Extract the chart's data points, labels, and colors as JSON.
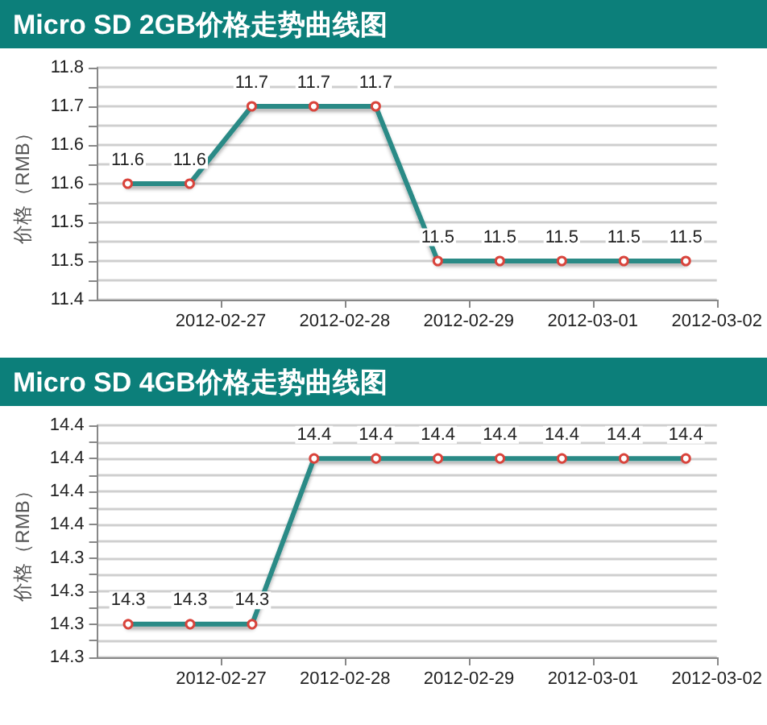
{
  "chart_data": [
    {
      "type": "line",
      "title": "Micro SD 2GB价格走势曲线图",
      "ylabel": "价格（RMB）",
      "x": [
        "2012-02-26T06:00",
        "2012-02-26T18:00",
        "2012-02-27T06:00",
        "2012-02-27T18:00",
        "2012-02-28T06:00",
        "2012-02-28T18:00",
        "2012-02-29T06:00",
        "2012-02-29T18:00",
        "2012-03-01T06:00",
        "2012-03-01T18:00"
      ],
      "series": [
        {
          "color": "#2a8a86",
          "values": [
            11.58,
            11.58,
            11.7,
            11.7,
            11.7,
            11.46,
            11.46,
            11.46,
            11.46,
            11.46
          ],
          "value_labels": [
            "11.6",
            "11.6",
            "11.7",
            "11.7",
            "11.7",
            "11.5",
            "11.5",
            "11.5",
            "11.5",
            "11.5"
          ]
        }
      ],
      "xlim": [
        "2012-02-26",
        "2012-03-02"
      ],
      "xticks": [
        "2012-02-27",
        "2012-02-28",
        "2012-02-29",
        "2012-03-01",
        "2012-03-02"
      ],
      "ylim": [
        11.4,
        11.76
      ],
      "yticks": [
        {
          "value": 11.4,
          "label": "11.4"
        },
        {
          "value": 11.43,
          "label": null
        },
        {
          "value": 11.46,
          "label": "11.5"
        },
        {
          "value": 11.49,
          "label": null
        },
        {
          "value": 11.52,
          "label": "11.5"
        },
        {
          "value": 11.55,
          "label": null
        },
        {
          "value": 11.58,
          "label": "11.6"
        },
        {
          "value": 11.61,
          "label": null
        },
        {
          "value": 11.64,
          "label": "11.6"
        },
        {
          "value": 11.67,
          "label": null
        },
        {
          "value": 11.7,
          "label": "11.7"
        },
        {
          "value": 11.73,
          "label": null
        },
        {
          "value": 11.76,
          "label": "11.8"
        }
      ],
      "grid": "y",
      "marker": "circle",
      "line_style": "solid"
    },
    {
      "type": "line",
      "title": "Micro SD 4GB价格走势曲线图",
      "ylabel": "价格（RMB）",
      "x": [
        "2012-02-26T06:00",
        "2012-02-26T18:00",
        "2012-02-27T06:00",
        "2012-02-27T18:00",
        "2012-02-28T06:00",
        "2012-02-28T18:00",
        "2012-02-29T06:00",
        "2012-02-29T18:00",
        "2012-03-01T06:00",
        "2012-03-01T18:00"
      ],
      "series": [
        {
          "color": "#2a8a86",
          "values": [
            14.275,
            14.275,
            14.275,
            14.4,
            14.4,
            14.4,
            14.4,
            14.4,
            14.4,
            14.4
          ],
          "value_labels": [
            "14.3",
            "14.3",
            "14.3",
            "14.4",
            "14.4",
            "14.4",
            "14.4",
            "14.4",
            "14.4",
            "14.4"
          ]
        }
      ],
      "xlim": [
        "2012-02-26",
        "2012-03-02"
      ],
      "xticks": [
        "2012-02-27",
        "2012-02-28",
        "2012-02-29",
        "2012-03-01",
        "2012-03-02"
      ],
      "ylim": [
        14.25,
        14.425
      ],
      "yticks": [
        {
          "value": 14.25,
          "label": "14.3"
        },
        {
          "value": 14.2625,
          "label": null
        },
        {
          "value": 14.275,
          "label": "14.3"
        },
        {
          "value": 14.2875,
          "label": null
        },
        {
          "value": 14.3,
          "label": "14.3"
        },
        {
          "value": 14.3125,
          "label": null
        },
        {
          "value": 14.325,
          "label": "14.3"
        },
        {
          "value": 14.3375,
          "label": null
        },
        {
          "value": 14.35,
          "label": "14.4"
        },
        {
          "value": 14.3625,
          "label": null
        },
        {
          "value": 14.375,
          "label": "14.4"
        },
        {
          "value": 14.3875,
          "label": null
        },
        {
          "value": 14.4,
          "label": "14.4"
        },
        {
          "value": 14.4125,
          "label": null
        },
        {
          "value": 14.425,
          "label": "14.4"
        }
      ],
      "grid": "y",
      "marker": "circle",
      "line_style": "solid"
    }
  ]
}
